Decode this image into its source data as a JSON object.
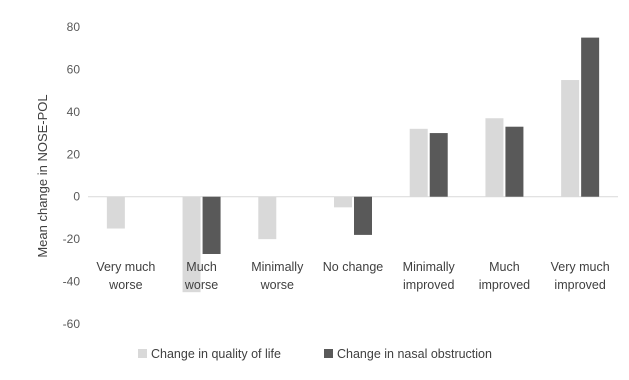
{
  "chart_data": {
    "type": "bar",
    "title": "",
    "xlabel": "",
    "ylabel": "Mean change in NOSE-POL",
    "ylim": [
      -60,
      80
    ],
    "yticks": [
      80,
      60,
      40,
      20,
      0,
      -20,
      -40,
      -60
    ],
    "grid": false,
    "legend_position": "bottom",
    "categories": [
      [
        "Very much",
        "worse"
      ],
      [
        "Much",
        "worse"
      ],
      [
        "Minimally",
        "worse"
      ],
      [
        "No change"
      ],
      [
        "Minimally",
        "improved"
      ],
      [
        "Much",
        "improved"
      ],
      [
        "Very much",
        "improved"
      ]
    ],
    "series": [
      {
        "name": "Change in quality of life",
        "color": "#d9d9d9",
        "values": [
          -15,
          -45,
          -20,
          -5,
          32,
          37,
          55
        ]
      },
      {
        "name": "Change in nasal obstruction",
        "color": "#595959",
        "values": [
          null,
          -27,
          null,
          -18,
          30,
          33,
          75
        ]
      }
    ]
  }
}
